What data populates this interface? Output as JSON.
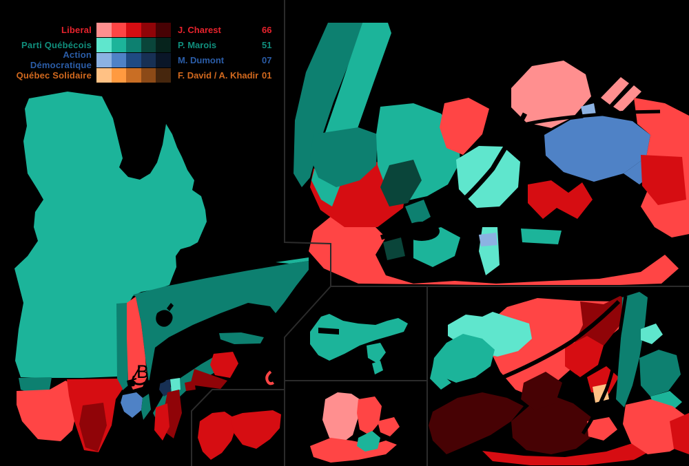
{
  "legend": {
    "rows": [
      {
        "key": "lib",
        "party": "Liberal",
        "leader": "J. Charest",
        "seats": "66",
        "text_color": "#e8232d",
        "shades": [
          "#ff8f8f",
          "#ff4545",
          "#d60d12",
          "#900408",
          "#470204"
        ]
      },
      {
        "key": "pq",
        "party": "Parti Québécois",
        "leader": "P. Marois",
        "seats": "51",
        "text_color": "#108f7d",
        "shades": [
          "#5fe6cd",
          "#1cb49a",
          "#0d8070",
          "#0a453a",
          "#06231c"
        ]
      },
      {
        "key": "adq",
        "party": "Action Démocratique",
        "leader": "M. Dumont",
        "seats": "07",
        "text_color": "#2b5da8",
        "shades": [
          "#8cb2e2",
          "#4f82c6",
          "#1f4a82",
          "#173054",
          "#0a1628"
        ]
      },
      {
        "key": "qs",
        "party": "Québec Solidaire",
        "leader": "F. David / A. Khadir",
        "seats": "01",
        "text_color": "#d2691e",
        "shades": [
          "#ffc184",
          "#ff9a40",
          "#c96e24",
          "#8c4a17",
          "#46260d"
        ]
      }
    ]
  },
  "map": {
    "label_b": "B"
  },
  "colors": {
    "background": "#000000",
    "divider": "#2b2b2b",
    "water": "#000000"
  }
}
